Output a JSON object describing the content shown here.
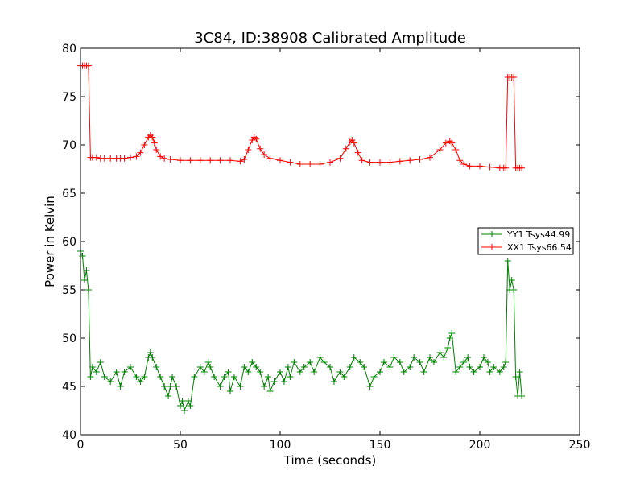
{
  "chart_data": {
    "type": "line",
    "title": "3C84, ID:38908 Calibrated Amplitude",
    "xlabel": "Time (seconds)",
    "ylabel": "Power in Kelvin",
    "xlim": [
      0,
      250
    ],
    "ylim": [
      40,
      80
    ],
    "xticks": [
      0,
      50,
      100,
      150,
      200,
      250
    ],
    "yticks": [
      40,
      45,
      50,
      55,
      60,
      65,
      70,
      75,
      80
    ],
    "grid": false,
    "legend_position": "right",
    "marker": "+",
    "series": [
      {
        "name": "YY1 Tsys44.99",
        "color": "#008000",
        "x": [
          0,
          1,
          2,
          3,
          4,
          5,
          6,
          8,
          10,
          12,
          15,
          18,
          20,
          22,
          25,
          28,
          30,
          32,
          34,
          35,
          36,
          38,
          40,
          42,
          44,
          45,
          46,
          48,
          50,
          51,
          52,
          54,
          55,
          57,
          60,
          62,
          64,
          65,
          67,
          70,
          72,
          74,
          75,
          77,
          80,
          82,
          84,
          86,
          88,
          90,
          92,
          94,
          95,
          97,
          100,
          102,
          104,
          105,
          107,
          110,
          112,
          115,
          117,
          120,
          122,
          125,
          127,
          130,
          132,
          135,
          137,
          140,
          142,
          145,
          147,
          150,
          152,
          155,
          157,
          160,
          162,
          165,
          167,
          170,
          172,
          175,
          177,
          180,
          182,
          184,
          185,
          186,
          188,
          190,
          192,
          194,
          195,
          197,
          200,
          202,
          204,
          205,
          207,
          210,
          212,
          213,
          214,
          215,
          216,
          217,
          218,
          219,
          220,
          221
        ],
        "y": [
          59,
          58.5,
          56,
          57,
          55,
          46,
          47,
          46.5,
          47.5,
          46,
          45.5,
          46.5,
          45,
          46.5,
          47,
          46,
          45.5,
          46,
          48,
          48.5,
          48,
          47,
          46,
          45,
          44,
          45,
          46,
          45,
          43,
          43.5,
          42.5,
          43.5,
          43,
          46,
          47,
          46.5,
          47.5,
          47,
          46,
          45,
          46,
          46.5,
          44.5,
          46,
          45,
          47,
          46.5,
          47.5,
          47,
          46.5,
          45,
          46,
          44.5,
          45.5,
          46.5,
          45.5,
          47,
          46,
          47.5,
          46.5,
          47,
          47.5,
          46.5,
          48,
          47.5,
          47,
          45.5,
          46.5,
          46,
          47,
          48,
          47.5,
          47,
          45,
          46,
          46.5,
          47.5,
          47,
          48,
          47.5,
          46.5,
          47,
          48,
          47.5,
          46.5,
          48,
          47.5,
          48.5,
          48,
          49,
          50,
          50.5,
          46.5,
          47,
          47.5,
          48,
          47,
          46.5,
          47,
          48,
          47.5,
          46.5,
          47,
          46.5,
          47,
          47.5,
          58,
          55,
          56,
          55,
          46,
          44,
          46.5,
          44
        ]
      },
      {
        "name": "XX1 Tsys66.54",
        "color": "#ff0000",
        "x": [
          0,
          1,
          2,
          3,
          4,
          5,
          6,
          8,
          10,
          12,
          15,
          18,
          20,
          22,
          25,
          28,
          30,
          32,
          34,
          35,
          36,
          37,
          38,
          40,
          42,
          45,
          50,
          55,
          60,
          65,
          70,
          75,
          80,
          82,
          84,
          86,
          87,
          88,
          90,
          92,
          95,
          100,
          105,
          110,
          115,
          120,
          125,
          130,
          133,
          135,
          136,
          137,
          139,
          141,
          145,
          150,
          155,
          160,
          165,
          170,
          175,
          180,
          183,
          185,
          186,
          188,
          190,
          192,
          195,
          200,
          205,
          210,
          212,
          213,
          214,
          215,
          216,
          217,
          218,
          219,
          220,
          221
        ],
        "y": [
          78.2,
          78.2,
          78.2,
          78.2,
          78.2,
          68.7,
          68.7,
          68.7,
          68.6,
          68.6,
          68.6,
          68.6,
          68.6,
          68.6,
          68.7,
          68.8,
          69.2,
          70,
          70.8,
          71,
          70.8,
          70.2,
          69.5,
          68.8,
          68.6,
          68.5,
          68.4,
          68.4,
          68.4,
          68.4,
          68.4,
          68.4,
          68.3,
          68.5,
          69.5,
          70.5,
          70.8,
          70.6,
          69.6,
          69,
          68.6,
          68.4,
          68.2,
          68,
          68,
          68,
          68.2,
          68.6,
          69.6,
          70.3,
          70.5,
          70.2,
          69.2,
          68.4,
          68.2,
          68.2,
          68.2,
          68.3,
          68.4,
          68.5,
          68.7,
          69.5,
          70.2,
          70.4,
          70.2,
          69.5,
          68.4,
          68,
          67.8,
          67.8,
          67.7,
          67.6,
          67.6,
          67.6,
          77,
          77,
          77,
          77,
          67.6,
          67.6,
          67.6,
          67.6
        ]
      }
    ]
  }
}
